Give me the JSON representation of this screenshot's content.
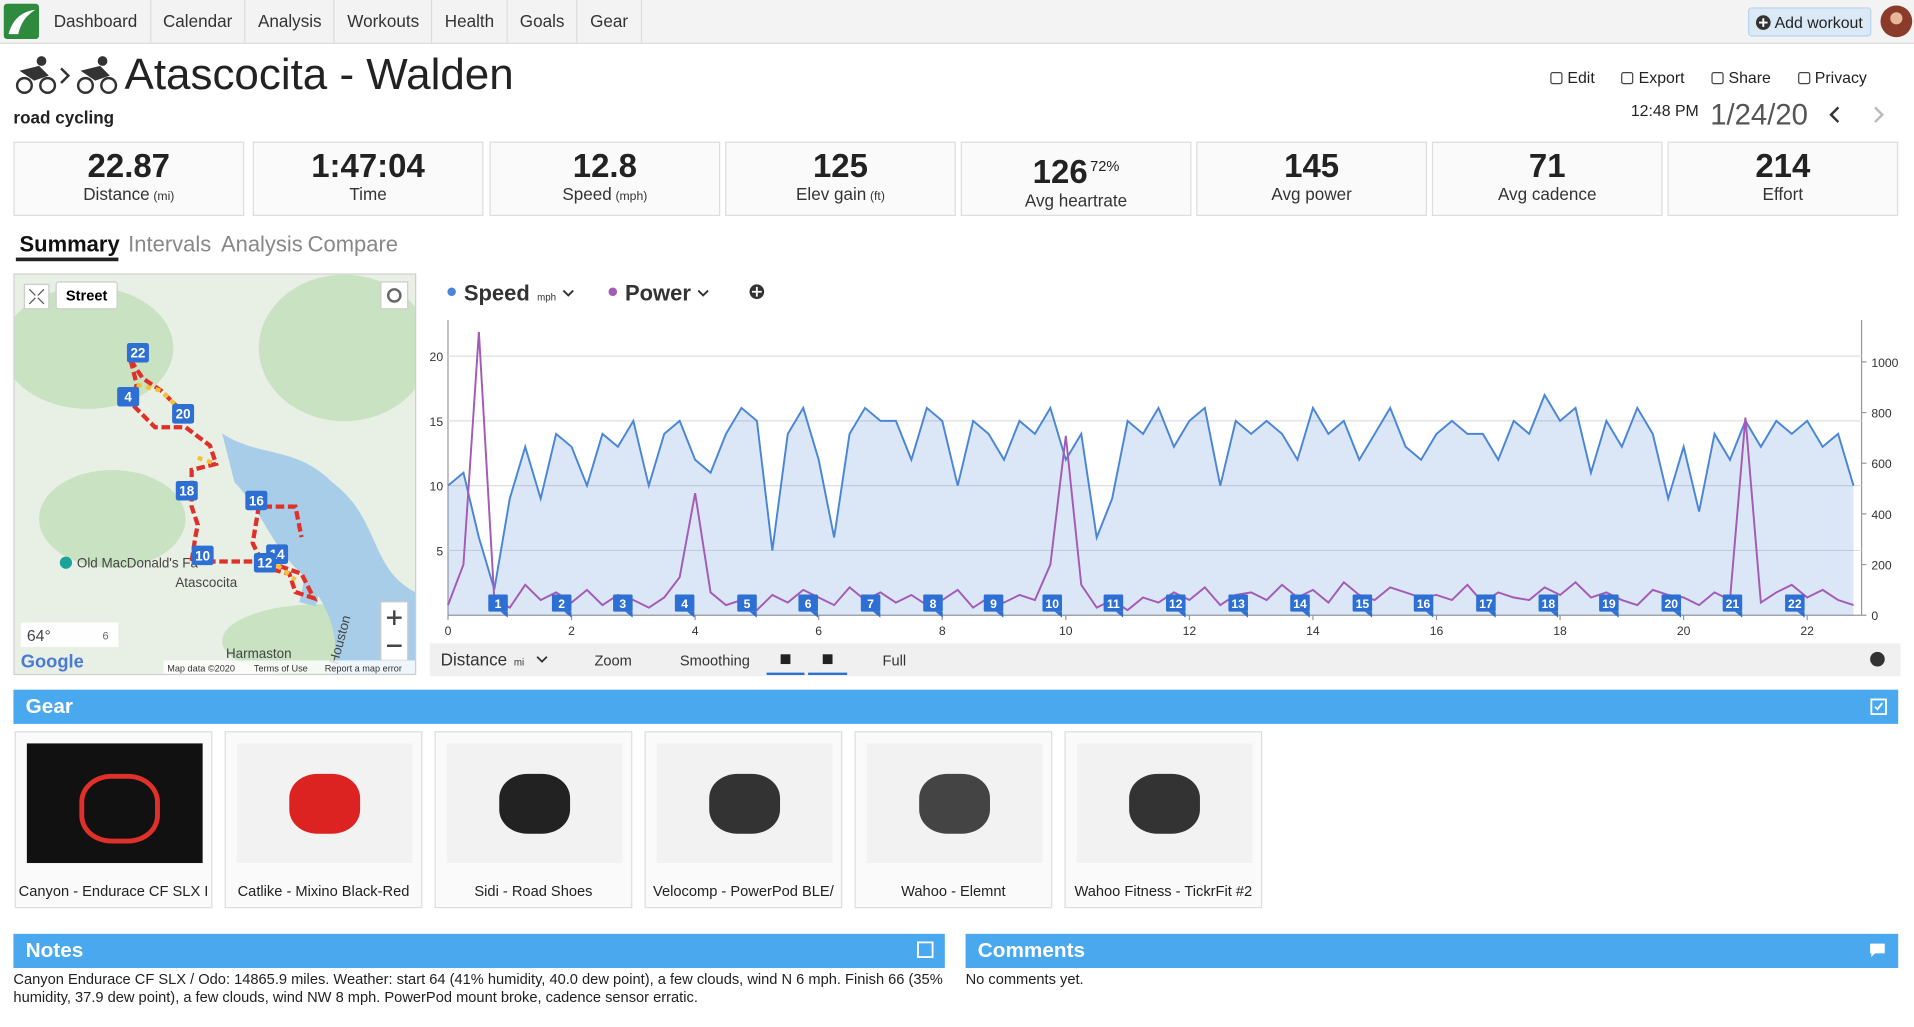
{
  "nav": {
    "items": [
      "Dashboard",
      "Calendar",
      "Analysis",
      "Workouts",
      "Health",
      "Goals",
      "Gear"
    ],
    "add_workout": "Add workout"
  },
  "header": {
    "title": "Atascocita - Walden",
    "sport": "road cycling",
    "actions": [
      "Edit",
      "Export",
      "Share",
      "Privacy"
    ],
    "time": "12:48 PM",
    "date": "1/24/20"
  },
  "stats": [
    {
      "value": "22.87",
      "label": "Distance",
      "unit": "(mi)"
    },
    {
      "value": "1:47:04",
      "label": "Time"
    },
    {
      "value": "12.8",
      "label": "Speed",
      "unit": "(mph)"
    },
    {
      "value": "125",
      "label": "Elev gain",
      "unit": "(ft)"
    },
    {
      "value": "126",
      "label": "Avg heartrate",
      "extra": "72%"
    },
    {
      "value": "145",
      "label": "Avg power"
    },
    {
      "value": "71",
      "label": "Avg cadence"
    },
    {
      "value": "214",
      "label": "Effort"
    }
  ],
  "tabs": [
    "Summary",
    "Intervals",
    "Analysis",
    "Compare"
  ],
  "map": {
    "mode": "Street",
    "places": [
      "Old MacDonald's Fa",
      "Atascocita",
      "Harmaston",
      "Houston"
    ],
    "markers": [
      "22",
      "4",
      "20",
      "18",
      "16",
      "10",
      "14",
      "12"
    ],
    "temperature": "64°",
    "wind": "6",
    "brand": "Google",
    "attribution": [
      "Map data ©2020",
      "Terms of Use",
      "Report a map error"
    ]
  },
  "chart_data": {
    "type": "line",
    "x": [
      0,
      0.25,
      0.5,
      0.75,
      1,
      1.25,
      1.5,
      1.75,
      2,
      2.25,
      2.5,
      2.75,
      3,
      3.25,
      3.5,
      3.75,
      4,
      4.25,
      4.5,
      4.75,
      5,
      5.25,
      5.5,
      5.75,
      6,
      6.25,
      6.5,
      6.75,
      7,
      7.25,
      7.5,
      7.75,
      8,
      8.25,
      8.5,
      8.75,
      9,
      9.25,
      9.5,
      9.75,
      10,
      10.25,
      10.5,
      10.75,
      11,
      11.25,
      11.5,
      11.75,
      12,
      12.25,
      12.5,
      12.75,
      13,
      13.25,
      13.5,
      13.75,
      14,
      14.25,
      14.5,
      14.75,
      15,
      15.25,
      15.5,
      15.75,
      16,
      16.25,
      16.5,
      16.75,
      17,
      17.25,
      17.5,
      17.75,
      18,
      18.25,
      18.5,
      18.75,
      19,
      19.25,
      19.5,
      19.75,
      20,
      20.25,
      20.5,
      20.75,
      21,
      21.25,
      21.5,
      21.75,
      22,
      22.25,
      22.5,
      22.75
    ],
    "xlim": [
      0,
      22.88
    ],
    "xticks": [
      0,
      2,
      4,
      6,
      8,
      10,
      12,
      14,
      16,
      18,
      20,
      22
    ],
    "ylim": [
      0,
      22.8
    ],
    "yticks": [
      5,
      10,
      15,
      20
    ],
    "y2lim": [
      0,
      1166
    ],
    "y2ticks": [
      0,
      200,
      400,
      600,
      800,
      1000
    ],
    "grid": true,
    "series": [
      {
        "name": "Speed",
        "unit": "mph",
        "color": "#4a86d8",
        "values": [
          10,
          11,
          6,
          2,
          9,
          13,
          9,
          14,
          13,
          10,
          14,
          13,
          15,
          10,
          14,
          15,
          12,
          11,
          14,
          16,
          15,
          5,
          14,
          16,
          12,
          6,
          14,
          16,
          15,
          15,
          12,
          16,
          15,
          10,
          15,
          14,
          12,
          15,
          14,
          16,
          12,
          14,
          6,
          9,
          15,
          14,
          16,
          13,
          15,
          16,
          10,
          15,
          14,
          15,
          14,
          12,
          16,
          14,
          15,
          12,
          14,
          16,
          13,
          12,
          14,
          15,
          14,
          14,
          12,
          15,
          14,
          17,
          15,
          16,
          11,
          15,
          13,
          16,
          14,
          9,
          13,
          8,
          14,
          12,
          15,
          13,
          15,
          14,
          15,
          13,
          14,
          10
        ]
      },
      {
        "name": "Power",
        "color": "#a35bb5",
        "axis": "y2",
        "values": [
          40,
          200,
          1118,
          60,
          30,
          120,
          60,
          90,
          50,
          100,
          40,
          80,
          60,
          30,
          70,
          150,
          482,
          90,
          40,
          60,
          20,
          80,
          50,
          100,
          70,
          40,
          110,
          60,
          90,
          50,
          80,
          40,
          60,
          100,
          30,
          70,
          50,
          80,
          60,
          200,
          708,
          120,
          30,
          60,
          20,
          70,
          50,
          90,
          60,
          110,
          40,
          80,
          90,
          60,
          120,
          70,
          100,
          50,
          130,
          80,
          60,
          110,
          90,
          70,
          80,
          60,
          120,
          50,
          90,
          70,
          60,
          110,
          80,
          130,
          70,
          90,
          60,
          40,
          100,
          80,
          70,
          40,
          90,
          60,
          780,
          50,
          90,
          120,
          70,
          100,
          60,
          40
        ]
      }
    ],
    "laps": {
      "labels": [
        1,
        2,
        3,
        4,
        5,
        6,
        7,
        8,
        9,
        10,
        11,
        12,
        13,
        14,
        15,
        16,
        17,
        18,
        19,
        20,
        21,
        22
      ],
      "x": [
        0.81,
        1.84,
        2.83,
        3.83,
        4.84,
        5.83,
        6.84,
        7.85,
        8.83,
        9.78,
        10.77,
        11.78,
        12.79,
        13.79,
        14.8,
        15.79,
        16.8,
        17.81,
        18.79,
        19.8,
        20.79,
        21.8
      ]
    },
    "controls": {
      "axis": "Distance",
      "axis_unit": "mi",
      "zoom": "Zoom",
      "smoothing": "Smoothing",
      "full": "Full"
    }
  },
  "gear": {
    "title": "Gear",
    "items": [
      "Canyon - Endurace CF SLX I",
      "Catlike - Mixino Black-Red",
      "Sidi - Road Shoes",
      "Velocomp - PowerPod BLE/",
      "Wahoo - Elemnt",
      "Wahoo Fitness - TickrFit #2"
    ]
  },
  "notes": {
    "title": "Notes",
    "text": "Canyon Endurace CF SLX / Odo: 14865.9 miles. Weather: start 64 (41% humidity, 40.0 dew point), a few clouds, wind N 6 mph. Finish 66 (35% humidity, 37.9 dew point), a few clouds, wind NW 8 mph. PowerPod mount broke, cadence sensor erratic."
  },
  "comments": {
    "title": "Comments",
    "text": "No comments yet."
  }
}
